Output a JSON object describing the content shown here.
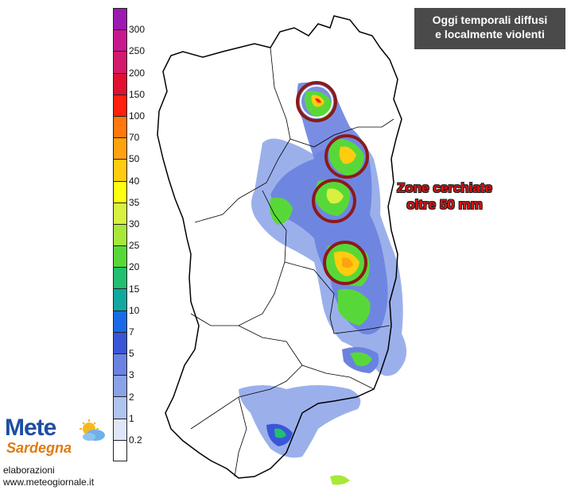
{
  "title": {
    "line1": "Oggi temporali diffusi",
    "line2": "e localmente violenti"
  },
  "annotation": {
    "line1": "Zone cerchiate",
    "line2": "oltre 50 mm"
  },
  "legend": {
    "labels": [
      "300",
      "250",
      "200",
      "150",
      "100",
      "70",
      "50",
      "40",
      "35",
      "30",
      "25",
      "20",
      "15",
      "10",
      "7",
      "5",
      "3",
      "2",
      "1",
      "0.2"
    ],
    "colors": [
      "#9c1ab0",
      "#c81890",
      "#d41a6a",
      "#e01030",
      "#ff2010",
      "#ff7810",
      "#ffa210",
      "#ffcc10",
      "#ffff10",
      "#d8f040",
      "#a8e838",
      "#58d838",
      "#20c070",
      "#10a8a0",
      "#1a6ae8",
      "#3a56d8",
      "#6a82e0",
      "#8aa2e8",
      "#b0c4f0",
      "#dfe6fa",
      "#ffffff"
    ]
  },
  "logo": {
    "main": "Mete",
    "sub": "Sardegna"
  },
  "credits": {
    "line1": "elaborazioni",
    "line2": "www.meteogiornale.it"
  },
  "colors": {
    "title_bg": "#4a4a4a",
    "annotation_text": "#e01010",
    "circle_stroke": "#8b1a1a"
  }
}
